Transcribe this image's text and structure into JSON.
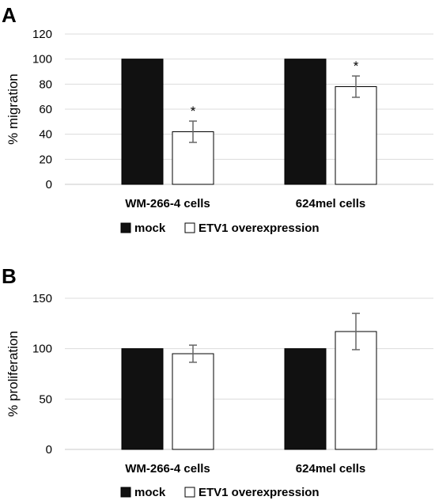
{
  "chart_data": [
    {
      "type": "bar",
      "panel_label": "A",
      "categories": [
        "WM-266-4 cells",
        "624mel cells"
      ],
      "series": [
        {
          "name": "mock",
          "color": "#111111",
          "values": [
            100,
            100
          ],
          "errors": [
            0,
            0
          ]
        },
        {
          "name": "ETV1 overexpression",
          "color": "#ffffff",
          "values": [
            42,
            78
          ],
          "errors": [
            8.5,
            8.5
          ]
        }
      ],
      "significance": [
        {
          "series": 1,
          "category": 0,
          "label": "*"
        },
        {
          "series": 1,
          "category": 1,
          "label": "*"
        }
      ],
      "ylabel": "% migration",
      "ylim": [
        0,
        120
      ],
      "yticks": [
        0,
        20,
        40,
        60,
        80,
        100,
        120
      ],
      "grid": true,
      "legend": "bottom"
    },
    {
      "type": "bar",
      "panel_label": "B",
      "categories": [
        "WM-266-4 cells",
        "624mel cells"
      ],
      "series": [
        {
          "name": "mock",
          "color": "#111111",
          "values": [
            100,
            100
          ],
          "errors": [
            0,
            0
          ]
        },
        {
          "name": "ETV1 overexpression",
          "color": "#ffffff",
          "values": [
            95,
            117
          ],
          "errors": [
            8.5,
            18
          ]
        }
      ],
      "significance": [],
      "ylabel": "% proliferation",
      "ylim": [
        0,
        150
      ],
      "yticks": [
        0,
        50,
        100,
        150
      ],
      "grid": true,
      "legend": "bottom"
    }
  ]
}
